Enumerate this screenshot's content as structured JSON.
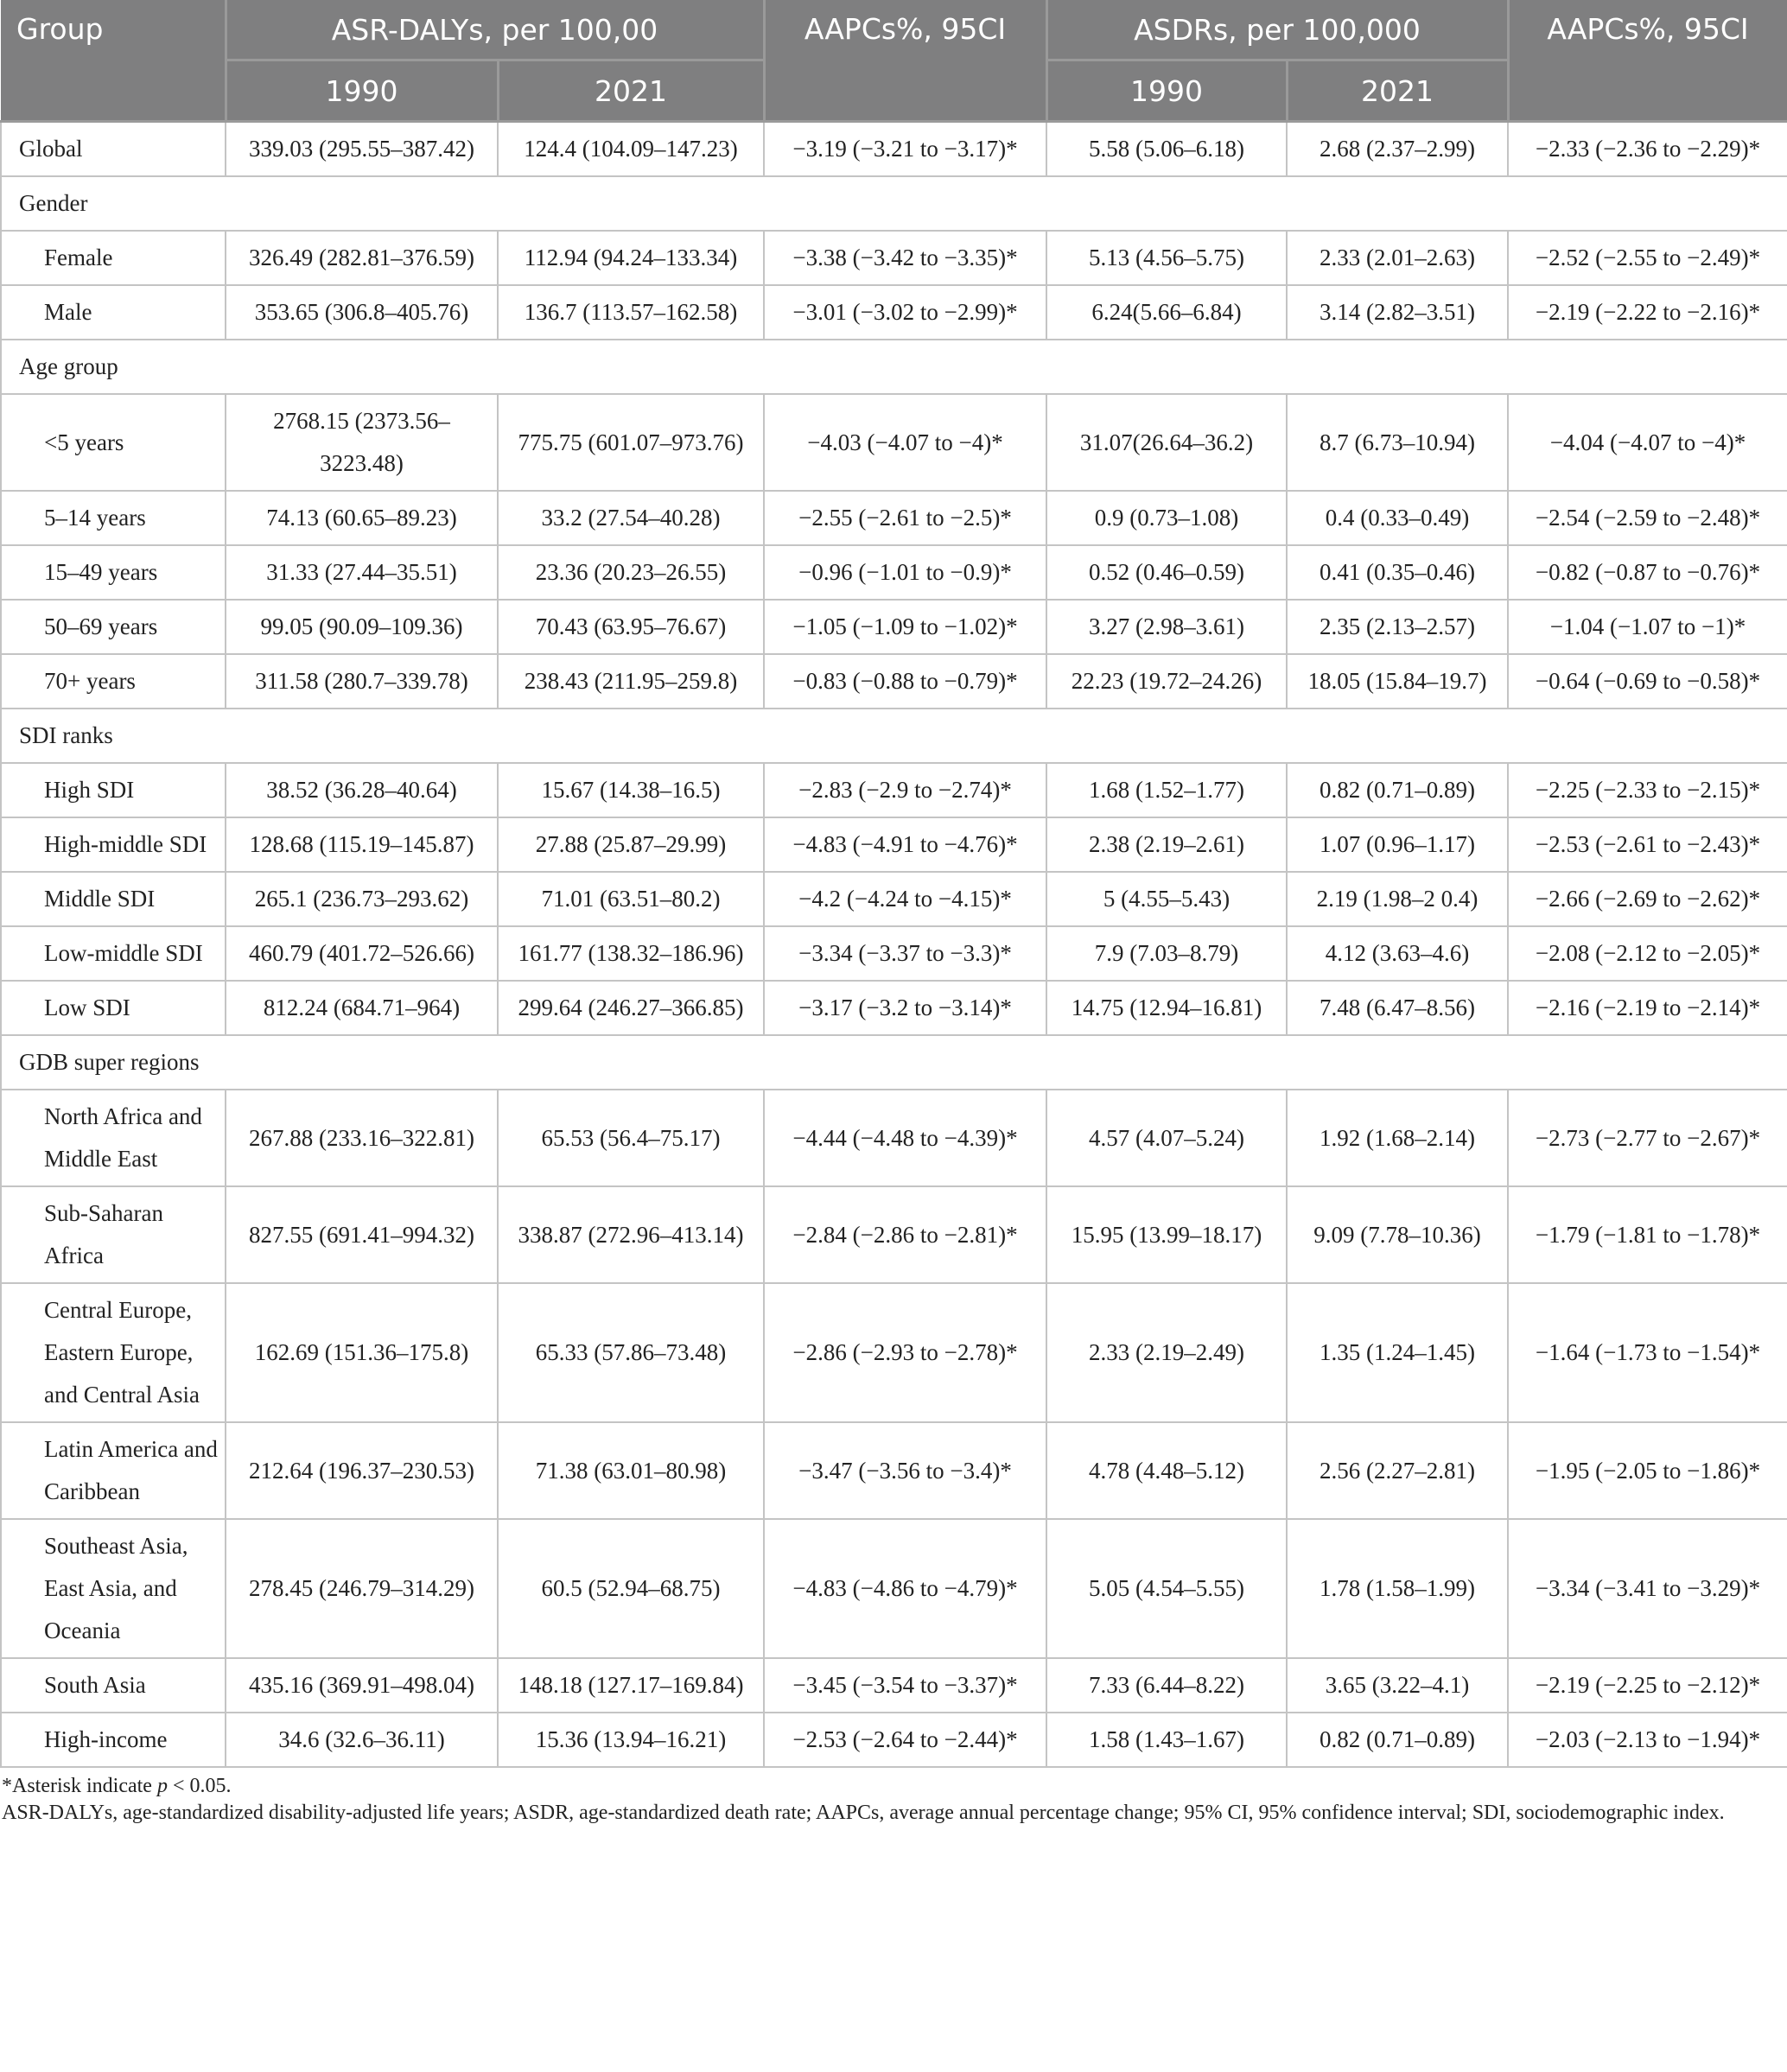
{
  "header": {
    "group": "Group",
    "asr_dalys": "ASR-DALYs, per 100,00",
    "aapc1": "AAPCs%, 95CI",
    "asdrs": "ASDRs, per 100,000",
    "aapc2": "AAPCs%, 95CI",
    "y1990a": "1990",
    "y2021a": "2021",
    "y1990b": "1990",
    "y2021b": "2021"
  },
  "rows": [
    {
      "type": "data",
      "indent": false,
      "cells": [
        "Global",
        "339.03 (295.55–387.42)",
        "124.4 (104.09–147.23)",
        "−3.19 (−3.21 to −3.17)*",
        "5.58 (5.06–6.18)",
        "2.68 (2.37–2.99)",
        "−2.33 (−2.36 to −2.29)*"
      ]
    },
    {
      "type": "section",
      "label": "Gender"
    },
    {
      "type": "data",
      "indent": true,
      "cells": [
        "Female",
        "326.49 (282.81–376.59)",
        "112.94 (94.24–133.34)",
        "−3.38 (−3.42 to −3.35)*",
        "5.13 (4.56–5.75)",
        "2.33 (2.01–2.63)",
        "−2.52 (−2.55 to −2.49)*"
      ]
    },
    {
      "type": "data",
      "indent": true,
      "cells": [
        "Male",
        "353.65 (306.8–405.76)",
        "136.7 (113.57–162.58)",
        "−3.01 (−3.02 to −2.99)*",
        "6.24(5.66–6.84)",
        "3.14 (2.82–3.51)",
        "−2.19 (−2.22 to −2.16)*"
      ]
    },
    {
      "type": "section",
      "label": "Age group"
    },
    {
      "type": "data",
      "indent": true,
      "cells": [
        "<5 years",
        "2768.15 (2373.56–3223.48)",
        "775.75 (601.07–973.76)",
        "−4.03 (−4.07 to −4)*",
        "31.07(26.64–36.2)",
        "8.7 (6.73–10.94)",
        "−4.04 (−4.07 to −4)*"
      ]
    },
    {
      "type": "data",
      "indent": true,
      "cells": [
        "5–14 years",
        "74.13 (60.65–89.23)",
        "33.2 (27.54–40.28)",
        "−2.55 (−2.61 to −2.5)*",
        "0.9 (0.73–1.08)",
        "0.4 (0.33–0.49)",
        "−2.54 (−2.59 to −2.48)*"
      ]
    },
    {
      "type": "data",
      "indent": true,
      "cells": [
        "15–49 years",
        "31.33 (27.44–35.51)",
        "23.36 (20.23–26.55)",
        "−0.96 (−1.01 to −0.9)*",
        "0.52 (0.46–0.59)",
        "0.41 (0.35–0.46)",
        "−0.82 (−0.87 to −0.76)*"
      ]
    },
    {
      "type": "data",
      "indent": true,
      "cells": [
        "50–69 years",
        "99.05 (90.09–109.36)",
        "70.43 (63.95–76.67)",
        "−1.05 (−1.09 to −1.02)*",
        "3.27 (2.98–3.61)",
        "2.35 (2.13–2.57)",
        "−1.04 (−1.07 to −1)*"
      ]
    },
    {
      "type": "data",
      "indent": true,
      "cells": [
        "70+ years",
        "311.58 (280.7–339.78)",
        "238.43 (211.95–259.8)",
        "−0.83 (−0.88 to −0.79)*",
        "22.23 (19.72–24.26)",
        "18.05 (15.84–19.7)",
        "−0.64 (−0.69 to −0.58)*"
      ]
    },
    {
      "type": "section",
      "label": "SDI ranks"
    },
    {
      "type": "data",
      "indent": true,
      "cells": [
        "High SDI",
        "38.52 (36.28–40.64)",
        "15.67 (14.38–16.5)",
        "−2.83 (−2.9 to −2.74)*",
        "1.68 (1.52–1.77)",
        "0.82 (0.71–0.89)",
        "−2.25 (−2.33 to −2.15)*"
      ]
    },
    {
      "type": "data",
      "indent": true,
      "cells": [
        "High-middle SDI",
        "128.68 (115.19–145.87)",
        "27.88 (25.87–29.99)",
        "−4.83 (−4.91 to −4.76)*",
        "2.38 (2.19–2.61)",
        "1.07 (0.96–1.17)",
        "−2.53 (−2.61 to −2.43)*"
      ]
    },
    {
      "type": "data",
      "indent": true,
      "cells": [
        "Middle SDI",
        "265.1 (236.73–293.62)",
        "71.01 (63.51–80.2)",
        "−4.2 (−4.24 to −4.15)*",
        "5 (4.55–5.43)",
        "2.19 (1.98–2 0.4)",
        "−2.66 (−2.69 to −2.62)*"
      ]
    },
    {
      "type": "data",
      "indent": true,
      "cells": [
        "Low-middle SDI",
        "460.79 (401.72–526.66)",
        "161.77 (138.32–186.96)",
        "−3.34 (−3.37 to −3.3)*",
        "7.9 (7.03–8.79)",
        "4.12 (3.63–4.6)",
        "−2.08 (−2.12 to −2.05)*"
      ]
    },
    {
      "type": "data",
      "indent": true,
      "cells": [
        "Low SDI",
        "812.24 (684.71–964)",
        "299.64 (246.27–366.85)",
        "−3.17 (−3.2 to −3.14)*",
        "14.75 (12.94–16.81)",
        "7.48 (6.47–8.56)",
        "−2.16 (−2.19 to −2.14)*"
      ]
    },
    {
      "type": "section",
      "label": "GDB super regions"
    },
    {
      "type": "data",
      "indent": true,
      "cells": [
        "North Africa and Middle East",
        "267.88 (233.16–322.81)",
        "65.53 (56.4–75.17)",
        "−4.44 (−4.48 to −4.39)*",
        "4.57 (4.07–5.24)",
        "1.92 (1.68–2.14)",
        "−2.73 (−2.77 to −2.67)*"
      ]
    },
    {
      "type": "data",
      "indent": true,
      "cells": [
        "Sub-Saharan Africa",
        "827.55 (691.41–994.32)",
        "338.87 (272.96–413.14)",
        "−2.84 (−2.86 to −2.81)*",
        "15.95 (13.99–18.17)",
        "9.09 (7.78–10.36)",
        "−1.79 (−1.81 to −1.78)*"
      ]
    },
    {
      "type": "data",
      "indent": true,
      "cells": [
        "Central Europe, Eastern Europe, and Central Asia",
        "162.69 (151.36–175.8)",
        "65.33 (57.86–73.48)",
        "−2.86 (−2.93 to −2.78)*",
        "2.33 (2.19–2.49)",
        "1.35 (1.24–1.45)",
        "−1.64 (−1.73 to −1.54)*"
      ]
    },
    {
      "type": "data",
      "indent": true,
      "cells": [
        "Latin America and Caribbean",
        "212.64 (196.37–230.53)",
        "71.38 (63.01–80.98)",
        "−3.47 (−3.56 to −3.4)*",
        "4.78 (4.48–5.12)",
        "2.56 (2.27–2.81)",
        "−1.95 (−2.05 to −1.86)*"
      ]
    },
    {
      "type": "data",
      "indent": true,
      "cells": [
        "Southeast Asia, East Asia, and Oceania",
        "278.45 (246.79–314.29)",
        "60.5 (52.94–68.75)",
        "−4.83 (−4.86 to −4.79)*",
        "5.05 (4.54–5.55)",
        "1.78 (1.58–1.99)",
        "−3.34 (−3.41 to −3.29)*"
      ]
    },
    {
      "type": "data",
      "indent": true,
      "cells": [
        "South Asia",
        "435.16 (369.91–498.04)",
        "148.18 (127.17–169.84)",
        "−3.45 (−3.54 to −3.37)*",
        "7.33 (6.44–8.22)",
        "3.65 (3.22–4.1)",
        "−2.19 (−2.25 to −2.12)*"
      ]
    },
    {
      "type": "data",
      "indent": true,
      "cells": [
        "High-income",
        "34.6 (32.6–36.11)",
        "15.36 (13.94–16.21)",
        "−2.53 (−2.64 to −2.44)*",
        "1.58 (1.43–1.67)",
        "0.82 (0.71–0.89)",
        "−2.03 (−2.13 to −1.94)*"
      ]
    }
  ],
  "footnote": {
    "asterisk_prefix": "*Asterisk indicate ",
    "asterisk_p": "p",
    "asterisk_suffix": " < 0.05.",
    "abbreviations": "ASR-DALYs, age-standardized disability-adjusted life years; ASDR, age-standardized death rate; AAPCs, average annual percentage change; 95% CI, 95% confidence interval; SDI, sociodemographic index."
  },
  "colors": {
    "header_bg": "#7f7f80",
    "header_text": "#ffffff",
    "border": "#c4c4c4"
  }
}
